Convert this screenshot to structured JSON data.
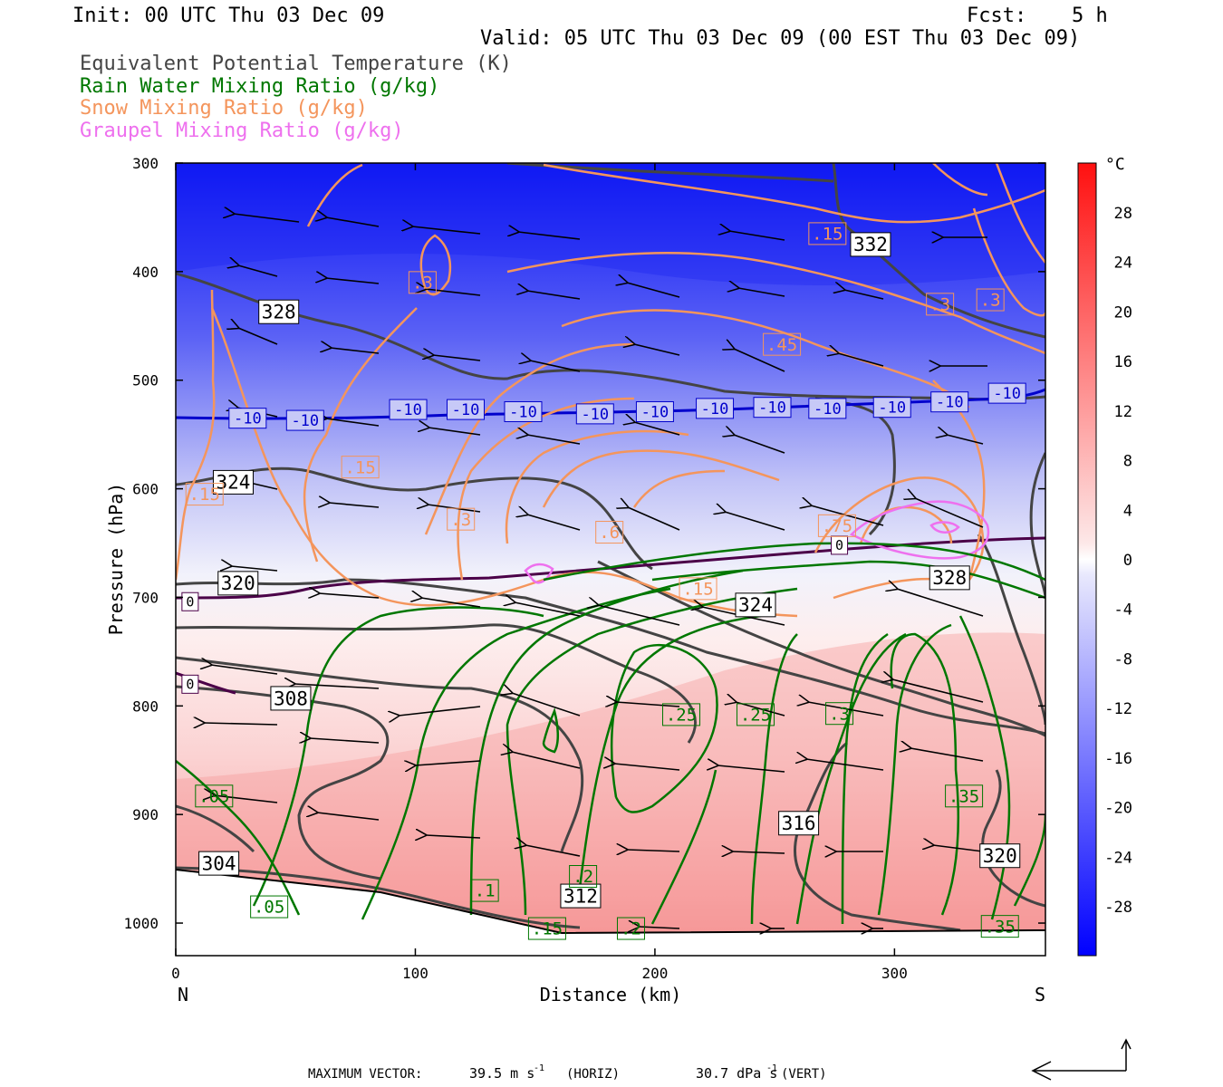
{
  "header": {
    "init": "Init: 00 UTC Thu 03 Dec 09",
    "fcst_label": "Fcst:",
    "fcst_value": "5 h",
    "valid": "Valid: 05 UTC Thu 03 Dec 09 (00 EST Thu 03 Dec 09)"
  },
  "legend": [
    {
      "label": "Equivalent Potential Temperature (K)",
      "color": "#444444"
    },
    {
      "label": "Rain Water Mixing Ratio (g/kg)",
      "color": "#007700"
    },
    {
      "label": "Snow Mixing Ratio (g/kg)",
      "color": "#f4955c"
    },
    {
      "label": "Graupel Mixing Ratio (g/kg)",
      "color": "#ee70ee"
    }
  ],
  "colorbar": {
    "unit": "°C",
    "ticks": [
      "28",
      "24",
      "20",
      "16",
      "12",
      "8",
      "4",
      "0",
      "-4",
      "-8",
      "-12",
      "-16",
      "-20",
      "-24",
      "-28"
    ]
  },
  "footer": {
    "max_vector": "MAXIMUM VECTOR:",
    "horiz_value": "39.5 m s",
    "horiz_unit": "(HORIZ)",
    "vert_value": "30.7 dPa s",
    "vert_unit": "(VERT)",
    "exp": "-1"
  },
  "chart_data": {
    "type": "heatmap",
    "xlabel": "Distance (km)",
    "ylabel": "Pressure (hPa)",
    "xlim": [
      0,
      363
    ],
    "ylim": [
      1030,
      300
    ],
    "x_ticks": [
      0,
      100,
      200,
      300
    ],
    "y_ticks": [
      300,
      400,
      500,
      600,
      700,
      800,
      900,
      1000
    ],
    "x_end_labels": {
      "left": "N",
      "right": "S"
    },
    "colors": {
      "cold": "#0000ff",
      "warm": "#ff2020",
      "theta_e": "#444444",
      "rain": "#007700",
      "snow": "#f4955c",
      "graupel": "#ee70ee",
      "minus10": "#0000cc",
      "zero": "#4b0048"
    },
    "freezing_level_hpa": 655,
    "minus10_level_hpa": 530,
    "theta_e_labels": [
      {
        "t": "328",
        "x": 43,
        "p": 437
      },
      {
        "t": "324",
        "x": 24,
        "p": 594
      },
      {
        "t": "320",
        "x": 26,
        "p": 687
      },
      {
        "t": "308",
        "x": 48,
        "p": 793
      },
      {
        "t": "304",
        "x": 18,
        "p": 945
      },
      {
        "t": "312",
        "x": 169,
        "p": 975
      },
      {
        "t": "316",
        "x": 260,
        "p": 908
      },
      {
        "t": "324",
        "x": 242,
        "p": 707
      },
      {
        "t": "328",
        "x": 323,
        "p": 682
      },
      {
        "t": "332",
        "x": 290,
        "p": 375
      },
      {
        "t": "320",
        "x": 344,
        "p": 938
      }
    ],
    "temp_labels": [
      {
        "t": "-10",
        "x": 30,
        "p": 535
      },
      {
        "t": "-10",
        "x": 54,
        "p": 537
      },
      {
        "t": "-10",
        "x": 97,
        "p": 527
      },
      {
        "t": "-10",
        "x": 121,
        "p": 527
      },
      {
        "t": "-10",
        "x": 145,
        "p": 529
      },
      {
        "t": "-10",
        "x": 175,
        "p": 531
      },
      {
        "t": "-10",
        "x": 200,
        "p": 529
      },
      {
        "t": "-10",
        "x": 225,
        "p": 526
      },
      {
        "t": "-10",
        "x": 249,
        "p": 525
      },
      {
        "t": "-10",
        "x": 272,
        "p": 526
      },
      {
        "t": "-10",
        "x": 299,
        "p": 525
      },
      {
        "t": "-10",
        "x": 323,
        "p": 520
      },
      {
        "t": "-10",
        "x": 347,
        "p": 512
      },
      {
        "t": "0",
        "x": 6,
        "p": 704
      },
      {
        "t": "0",
        "x": 6,
        "p": 780
      },
      {
        "t": "0",
        "x": 277,
        "p": 652
      }
    ],
    "snow_labels": [
      {
        "t": ".3",
        "x": 103,
        "p": 410
      },
      {
        "t": ".15",
        "x": 272,
        "p": 365
      },
      {
        "t": ".3",
        "x": 319,
        "p": 430
      },
      {
        "t": ".3",
        "x": 340,
        "p": 426
      },
      {
        "t": ".45",
        "x": 253,
        "p": 467
      },
      {
        "t": ".15",
        "x": 77,
        "p": 580
      },
      {
        "t": ".15",
        "x": 12,
        "p": 605
      },
      {
        "t": ".3",
        "x": 119,
        "p": 628
      },
      {
        "t": ".6",
        "x": 181,
        "p": 640
      },
      {
        "t": ".75",
        "x": 276,
        "p": 634
      },
      {
        "t": ".15",
        "x": 218,
        "p": 692
      }
    ],
    "rain_labels": [
      {
        "t": ".25",
        "x": 211,
        "p": 808
      },
      {
        "t": ".25",
        "x": 242,
        "p": 808
      },
      {
        "t": ".3",
        "x": 277,
        "p": 807
      },
      {
        "t": ".35",
        "x": 329,
        "p": 883
      },
      {
        "t": ".05",
        "x": 16,
        "p": 883
      },
      {
        "t": ".05",
        "x": 39,
        "p": 985
      },
      {
        "t": ".1",
        "x": 129,
        "p": 970
      },
      {
        "t": ".2",
        "x": 170,
        "p": 957
      },
      {
        "t": ".15",
        "x": 155,
        "p": 1005
      },
      {
        "t": ".2",
        "x": 190,
        "p": 1005
      },
      {
        "t": ".35",
        "x": 344,
        "p": 1003
      }
    ]
  }
}
